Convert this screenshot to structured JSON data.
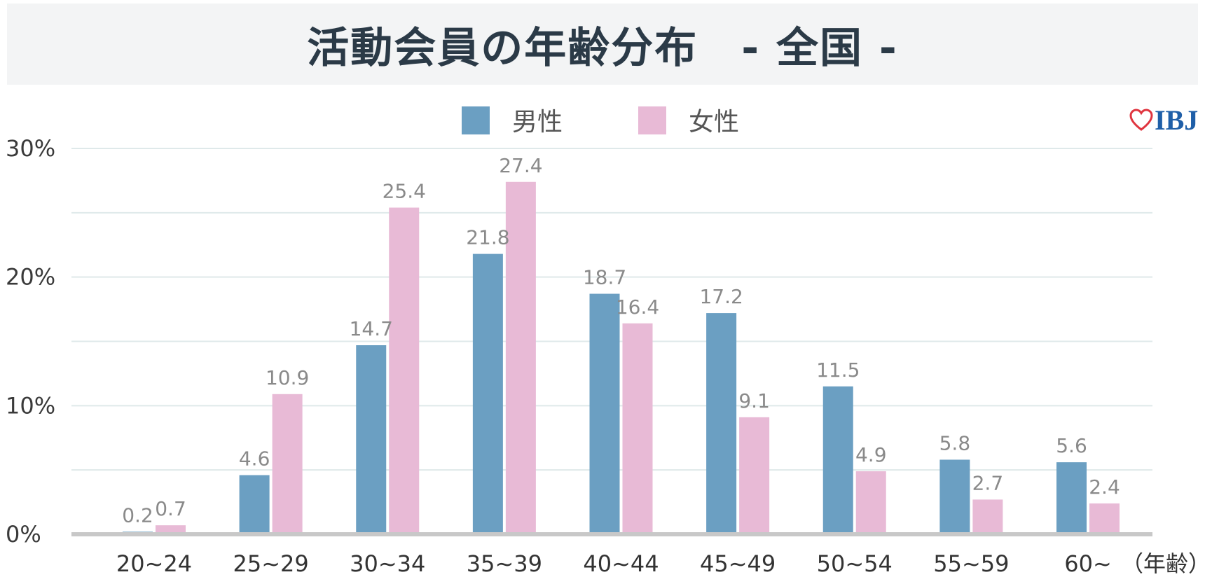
{
  "header": {
    "title": "活動会員の年齢分布　- 全国 -"
  },
  "logo": {
    "text": "IBJ",
    "icon": "heart-icon",
    "heart_color": "#e0353f",
    "text_color": "#1f5fa8"
  },
  "chart_data": {
    "type": "bar",
    "title": "活動会員の年齢分布　- 全国 -",
    "categories": [
      "20~24",
      "25~29",
      "30~34",
      "35~39",
      "40~44",
      "45~49",
      "50~54",
      "55~59",
      "60~"
    ],
    "series": [
      {
        "name": "男性",
        "color": "#6b9fc2",
        "values": [
          0.2,
          4.6,
          14.7,
          21.8,
          18.7,
          17.2,
          11.5,
          5.8,
          5.6
        ]
      },
      {
        "name": "女性",
        "color": "#e8bad6",
        "values": [
          0.7,
          10.9,
          25.4,
          27.4,
          16.4,
          9.1,
          4.9,
          2.7,
          2.4
        ]
      }
    ],
    "xlabel": "（年齢）",
    "ylabel": "",
    "ylim": [
      0,
      30
    ],
    "yticks": [
      0,
      10,
      20,
      30
    ],
    "ytick_labels": [
      "0%",
      "10%",
      "20%",
      "30%"
    ],
    "grid": true,
    "legend": "top-center"
  }
}
